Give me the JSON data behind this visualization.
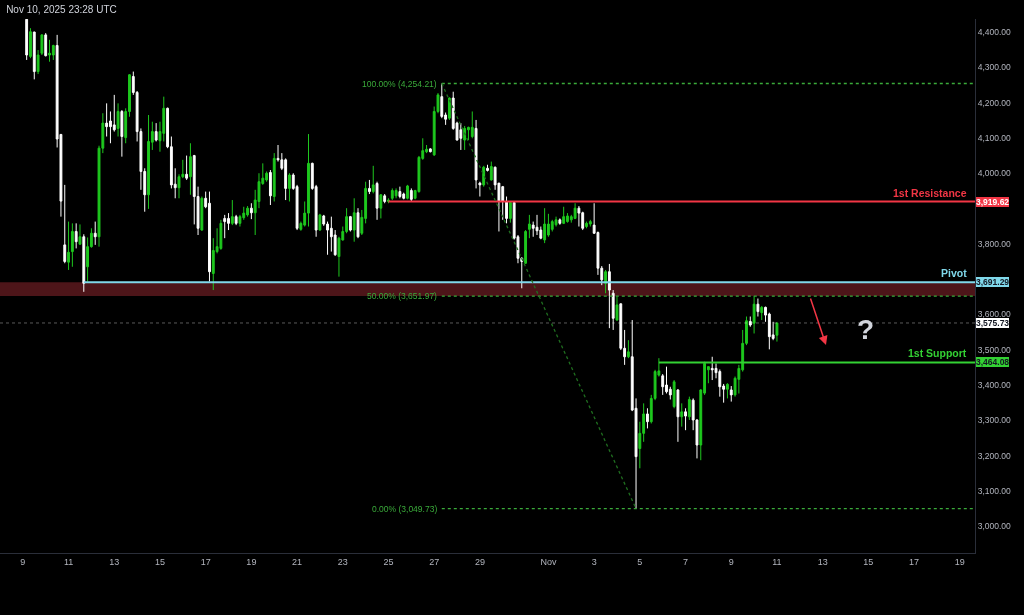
{
  "chart_data": {
    "type": "candlestick",
    "title": "Nov 10, 2025 23:28 UTC",
    "x": [
      "2025-10-09T04:00",
      "2025-10-09T08:00",
      "2025-10-09T12:00",
      "2025-10-09T16:00",
      "2025-10-09T20:00",
      "2025-10-10T00:00",
      "2025-10-10T04:00",
      "2025-10-10T08:00",
      "2025-10-10T12:00",
      "2025-10-10T16:00",
      "2025-10-10T20:00",
      "2025-10-11T00:00",
      "2025-10-11T04:00",
      "2025-10-11T08:00",
      "2025-10-11T12:00",
      "2025-10-11T16:00",
      "2025-10-11T20:00",
      "2025-10-12T00:00",
      "2025-10-12T04:00",
      "2025-10-12T08:00",
      "2025-10-12T12:00",
      "2025-10-12T16:00",
      "2025-10-12T20:00",
      "2025-10-13T00:00",
      "2025-10-13T04:00",
      "2025-10-13T08:00",
      "2025-10-13T12:00",
      "2025-10-13T16:00",
      "2025-10-13T20:00",
      "2025-10-14T00:00",
      "2025-10-14T04:00",
      "2025-10-14T08:00",
      "2025-10-14T12:00",
      "2025-10-14T16:00",
      "2025-10-14T20:00",
      "2025-10-15T00:00",
      "2025-10-15T04:00",
      "2025-10-15T08:00",
      "2025-10-15T12:00",
      "2025-10-15T16:00",
      "2025-10-15T20:00",
      "2025-10-16T00:00",
      "2025-10-16T04:00",
      "2025-10-16T08:00",
      "2025-10-16T12:00",
      "2025-10-16T16:00",
      "2025-10-16T20:00",
      "2025-10-17T00:00",
      "2025-10-17T04:00",
      "2025-10-17T08:00",
      "2025-10-17T12:00",
      "2025-10-17T16:00",
      "2025-10-17T20:00",
      "2025-10-18T00:00",
      "2025-10-18T04:00",
      "2025-10-18T08:00",
      "2025-10-18T12:00",
      "2025-10-18T16:00",
      "2025-10-18T20:00",
      "2025-10-19T00:00",
      "2025-10-19T04:00",
      "2025-10-19T08:00",
      "2025-10-19T12:00",
      "2025-10-19T16:00",
      "2025-10-19T20:00",
      "2025-10-20T00:00",
      "2025-10-20T04:00",
      "2025-10-20T08:00",
      "2025-10-20T12:00",
      "2025-10-20T16:00",
      "2025-10-20T20:00",
      "2025-10-21T00:00",
      "2025-10-21T04:00",
      "2025-10-21T08:00",
      "2025-10-21T12:00",
      "2025-10-21T16:00",
      "2025-10-21T20:00",
      "2025-10-22T00:00",
      "2025-10-22T04:00",
      "2025-10-22T08:00",
      "2025-10-22T12:00",
      "2025-10-22T16:00",
      "2025-10-22T20:00",
      "2025-10-23T00:00",
      "2025-10-23T04:00",
      "2025-10-23T08:00",
      "2025-10-23T12:00",
      "2025-10-23T16:00",
      "2025-10-23T20:00",
      "2025-10-24T00:00",
      "2025-10-24T04:00",
      "2025-10-24T08:00",
      "2025-10-24T12:00",
      "2025-10-24T16:00",
      "2025-10-24T20:00",
      "2025-10-25T00:00",
      "2025-10-25T04:00",
      "2025-10-25T08:00",
      "2025-10-25T12:00",
      "2025-10-25T16:00",
      "2025-10-25T20:00",
      "2025-10-26T00:00",
      "2025-10-26T04:00",
      "2025-10-26T08:00",
      "2025-10-26T12:00",
      "2025-10-26T16:00",
      "2025-10-26T20:00",
      "2025-10-27T00:00",
      "2025-10-27T04:00",
      "2025-10-27T08:00",
      "2025-10-27T12:00",
      "2025-10-27T16:00",
      "2025-10-27T20:00",
      "2025-10-28T00:00",
      "2025-10-28T04:00",
      "2025-10-28T08:00",
      "2025-10-28T12:00",
      "2025-10-28T16:00",
      "2025-10-28T20:00",
      "2025-10-29T00:00",
      "2025-10-29T04:00",
      "2025-10-29T08:00",
      "2025-10-29T12:00",
      "2025-10-29T16:00",
      "2025-10-29T20:00",
      "2025-10-30T00:00",
      "2025-10-30T04:00",
      "2025-10-30T08:00",
      "2025-10-30T12:00",
      "2025-10-30T16:00",
      "2025-10-30T20:00",
      "2025-10-31T00:00",
      "2025-10-31T04:00",
      "2025-10-31T08:00",
      "2025-10-31T12:00",
      "2025-10-31T16:00",
      "2025-10-31T20:00",
      "2025-11-01T00:00",
      "2025-11-01T04:00",
      "2025-11-01T08:00",
      "2025-11-01T12:00",
      "2025-11-01T16:00",
      "2025-11-01T20:00",
      "2025-11-02T00:00",
      "2025-11-02T04:00",
      "2025-11-02T08:00",
      "2025-11-02T12:00",
      "2025-11-02T16:00",
      "2025-11-02T20:00",
      "2025-11-03T00:00",
      "2025-11-03T04:00",
      "2025-11-03T08:00",
      "2025-11-03T12:00",
      "2025-11-03T16:00",
      "2025-11-03T20:00",
      "2025-11-04T00:00",
      "2025-11-04T04:00",
      "2025-11-04T08:00",
      "2025-11-04T12:00",
      "2025-11-04T16:00",
      "2025-11-04T20:00",
      "2025-11-05T00:00",
      "2025-11-05T04:00",
      "2025-11-05T08:00",
      "2025-11-05T12:00",
      "2025-11-05T16:00",
      "2025-11-05T20:00",
      "2025-11-06T00:00",
      "2025-11-06T04:00",
      "2025-11-06T08:00",
      "2025-11-06T12:00",
      "2025-11-06T16:00",
      "2025-11-06T20:00",
      "2025-11-07T00:00",
      "2025-11-07T04:00",
      "2025-11-07T08:00",
      "2025-11-07T12:00",
      "2025-11-07T16:00",
      "2025-11-07T20:00",
      "2025-11-08T00:00",
      "2025-11-08T04:00",
      "2025-11-08T08:00",
      "2025-11-08T12:00",
      "2025-11-08T16:00",
      "2025-11-08T20:00",
      "2025-11-09T00:00",
      "2025-11-09T04:00",
      "2025-11-09T08:00",
      "2025-11-09T12:00",
      "2025-11-09T16:00",
      "2025-11-09T20:00",
      "2025-11-10T00:00",
      "2025-11-10T04:00",
      "2025-11-10T08:00",
      "2025-11-10T12:00",
      "2025-11-10T16:00",
      "2025-11-10T20:00",
      "2025-11-11T00:00"
    ],
    "ohlc": [
      [
        4436,
        4436,
        4321,
        4335
      ],
      [
        4331,
        4411,
        4326,
        4401
      ],
      [
        4400,
        4401,
        4266,
        4288
      ],
      [
        4288,
        4349,
        4281,
        4335
      ],
      [
        4340,
        4394,
        4335,
        4392
      ],
      [
        4392,
        4397,
        4331,
        4333
      ],
      [
        4335,
        4378,
        4316,
        4340
      ],
      [
        4335,
        4364,
        4321,
        4362
      ],
      [
        4362,
        4392,
        4073,
        4097
      ],
      [
        4110,
        4111,
        3877,
        3921
      ],
      [
        3797,
        3967,
        3745,
        3750
      ],
      [
        3748,
        3863,
        3726,
        3776
      ],
      [
        3778,
        3858,
        3735,
        3835
      ],
      [
        3835,
        3858,
        3787,
        3806
      ],
      [
        3799,
        3855,
        3797,
        3820
      ],
      [
        3820,
        3827,
        3664,
        3688
      ],
      [
        3735,
        3818,
        3693,
        3792
      ],
      [
        3792,
        3844,
        3789,
        3830
      ],
      [
        3830,
        3863,
        3797,
        3820
      ],
      [
        3820,
        4078,
        3792,
        4071
      ],
      [
        4071,
        4170,
        4057,
        4142
      ],
      [
        4142,
        4198,
        4104,
        4132
      ],
      [
        4148,
        4175,
        4085,
        4132
      ],
      [
        4137,
        4222,
        4118,
        4123
      ],
      [
        4127,
        4198,
        4104,
        4175
      ],
      [
        4175,
        4179,
        4047,
        4104
      ],
      [
        4101,
        4184,
        4085,
        4175
      ],
      [
        4175,
        4281,
        4160,
        4279
      ],
      [
        4274,
        4288,
        4222,
        4229
      ],
      [
        4229,
        4233,
        4090,
        4118
      ],
      [
        4118,
        4127,
        3953,
        4005
      ],
      [
        4005,
        4014,
        3891,
        3939
      ],
      [
        3939,
        4165,
        3899,
        4090
      ],
      [
        4088,
        4146,
        4066,
        4118
      ],
      [
        4118,
        4142,
        4090,
        4094
      ],
      [
        4092,
        4146,
        4061,
        4118
      ],
      [
        4113,
        4217,
        4090,
        4184
      ],
      [
        4184,
        4186,
        4071,
        4075
      ],
      [
        4075,
        4104,
        3957,
        3967
      ],
      [
        3969,
        4014,
        3929,
        3959
      ],
      [
        3959,
        3997,
        3929,
        3990
      ],
      [
        3990,
        4038,
        3986,
        3997
      ],
      [
        3997,
        4050,
        3981,
        3986
      ],
      [
        3990,
        4085,
        3939,
        4047
      ],
      [
        4050,
        4052,
        3855,
        3934
      ],
      [
        3934,
        3962,
        3825,
        3844
      ],
      [
        3839,
        3934,
        3837,
        3929
      ],
      [
        3929,
        3948,
        3901,
        3905
      ],
      [
        3915,
        3948,
        3693,
        3721
      ],
      [
        3716,
        3816,
        3669,
        3781
      ],
      [
        3778,
        3844,
        3773,
        3792
      ],
      [
        3787,
        3868,
        3783,
        3858
      ],
      [
        3872,
        3882,
        3816,
        3863
      ],
      [
        3872,
        3887,
        3839,
        3858
      ],
      [
        3858,
        3924,
        3853,
        3877
      ],
      [
        3877,
        3882,
        3853,
        3858
      ],
      [
        3858,
        3882,
        3849,
        3877
      ],
      [
        3874,
        3905,
        3868,
        3887
      ],
      [
        3882,
        3907,
        3877,
        3901
      ],
      [
        3901,
        3915,
        3870,
        3888
      ],
      [
        3888,
        3953,
        3825,
        3924
      ],
      [
        3920,
        4000,
        3901,
        3976
      ],
      [
        3971,
        4028,
        3967,
        3986
      ],
      [
        3981,
        4005,
        3976,
        4000
      ],
      [
        4002,
        4009,
        3910,
        3936
      ],
      [
        3934,
        4057,
        3920,
        4042
      ],
      [
        4042,
        4080,
        4033,
        4038
      ],
      [
        4038,
        4057,
        4009,
        4014
      ],
      [
        4038,
        4042,
        3924,
        3957
      ],
      [
        3957,
        4000,
        3920,
        3995
      ],
      [
        3995,
        4000,
        3953,
        3957
      ],
      [
        3962,
        3967,
        3839,
        3844
      ],
      [
        3841,
        3863,
        3837,
        3858
      ],
      [
        3853,
        3920,
        3849,
        3887
      ],
      [
        3887,
        4111,
        3849,
        4028
      ],
      [
        4028,
        4030,
        3953,
        3957
      ],
      [
        3962,
        3967,
        3820,
        3839
      ],
      [
        3839,
        3885,
        3837,
        3882
      ],
      [
        3879,
        3882,
        3851,
        3856
      ],
      [
        3856,
        3863,
        3769,
        3839
      ],
      [
        3844,
        3877,
        3778,
        3820
      ],
      [
        3825,
        3839,
        3766,
        3769
      ],
      [
        3764,
        3820,
        3707,
        3816
      ],
      [
        3811,
        3849,
        3809,
        3835
      ],
      [
        3835,
        3901,
        3830,
        3877
      ],
      [
        3877,
        3879,
        3835,
        3839
      ],
      [
        3839,
        3929,
        3806,
        3888
      ],
      [
        3888,
        3901,
        3816,
        3820
      ],
      [
        3830,
        3896,
        3825,
        3875
      ],
      [
        3872,
        3976,
        3858,
        3957
      ],
      [
        3957,
        3981,
        3941,
        3948
      ],
      [
        3948,
        4021,
        3943,
        3967
      ],
      [
        3971,
        3976,
        3868,
        3901
      ],
      [
        3901,
        3941,
        3872,
        3939
      ],
      [
        3936,
        3941,
        3915,
        3920
      ],
      [
        3920,
        3929,
        3915,
        3924
      ],
      [
        3929,
        3957,
        3924,
        3951
      ],
      [
        3936,
        3957,
        3929,
        3951
      ],
      [
        3948,
        3962,
        3929,
        3934
      ],
      [
        3941,
        3945,
        3926,
        3929
      ],
      [
        3929,
        3967,
        3926,
        3964
      ],
      [
        3951,
        3957,
        3920,
        3926
      ],
      [
        3929,
        3953,
        3926,
        3951
      ],
      [
        3948,
        4049,
        3945,
        4045
      ],
      [
        4042,
        4099,
        4038,
        4064
      ],
      [
        4061,
        4080,
        4057,
        4068
      ],
      [
        4069,
        4071,
        4059,
        4061
      ],
      [
        4052,
        4189,
        4049,
        4175
      ],
      [
        4175,
        4227,
        4170,
        4222
      ],
      [
        4217,
        4254.21,
        4156,
        4161
      ],
      [
        4165,
        4172,
        4137,
        4153
      ],
      [
        4156,
        4215,
        4151,
        4213
      ],
      [
        4213,
        4231,
        4123,
        4127
      ],
      [
        4142,
        4146,
        4093,
        4094
      ],
      [
        4123,
        4142,
        4066,
        4099
      ],
      [
        4094,
        4134,
        4066,
        4127
      ],
      [
        4123,
        4132,
        4094,
        4130
      ],
      [
        4104,
        4175,
        4099,
        4130
      ],
      [
        4127,
        4151,
        3957,
        3981
      ],
      [
        3972,
        3976,
        3934,
        3967
      ],
      [
        3967,
        4021,
        3962,
        4017
      ],
      [
        4014,
        4024,
        4005,
        4008
      ],
      [
        3981,
        4033,
        3979,
        4019
      ],
      [
        4017,
        4019,
        3953,
        3967
      ],
      [
        3972,
        3972,
        3835,
        3920
      ],
      [
        3962,
        3964,
        3868,
        3920
      ],
      [
        3920,
        3934,
        3858,
        3872
      ],
      [
        3872,
        3920,
        3860,
        3917
      ],
      [
        3917,
        3920,
        3812,
        3816
      ],
      [
        3820,
        3825,
        3745,
        3759
      ],
      [
        3759,
        3762,
        3674,
        3750
      ],
      [
        3745,
        3839,
        3743,
        3835
      ],
      [
        3841,
        3882,
        3816,
        3856
      ],
      [
        3853,
        3863,
        3820,
        3844
      ],
      [
        3847,
        3882,
        3825,
        3837
      ],
      [
        3839,
        3849,
        3813,
        3816
      ],
      [
        3811,
        3901,
        3802,
        3856
      ],
      [
        3825,
        3885,
        3820,
        3856
      ],
      [
        3841,
        3868,
        3835,
        3863
      ],
      [
        3854,
        3877,
        3849,
        3868
      ],
      [
        3868,
        3872,
        3854,
        3858
      ],
      [
        3858,
        3905,
        3856,
        3877
      ],
      [
        3863,
        3887,
        3860,
        3879
      ],
      [
        3868,
        3882,
        3860,
        3877
      ],
      [
        3872,
        3915,
        3870,
        3901
      ],
      [
        3901,
        3907,
        3849,
        3887
      ],
      [
        3888,
        3891,
        3839,
        3844
      ],
      [
        3849,
        3863,
        3844,
        3858
      ],
      [
        3856,
        3868,
        3849,
        3863
      ],
      [
        3853,
        3915,
        3828,
        3830
      ],
      [
        3832,
        3835,
        3712,
        3731
      ],
      [
        3731,
        3737,
        3683,
        3698
      ],
      [
        3688,
        3726,
        3660,
        3721
      ],
      [
        3721,
        3743,
        3561,
        3669
      ],
      [
        3660,
        3669,
        3556,
        3589
      ],
      [
        3584,
        3650,
        3582,
        3627
      ],
      [
        3630,
        3631,
        3499,
        3504
      ],
      [
        3504,
        3556,
        3457,
        3480
      ],
      [
        3480,
        3527,
        3476,
        3494
      ],
      [
        3480,
        3584,
        3326,
        3329
      ],
      [
        3334,
        3362,
        3049.73,
        3197
      ],
      [
        3220,
        3296,
        3164,
        3263
      ],
      [
        3263,
        3348,
        3239,
        3318
      ],
      [
        3318,
        3334,
        3277,
        3296
      ],
      [
        3296,
        3372,
        3291,
        3362
      ],
      [
        3362,
        3443,
        3357,
        3438
      ],
      [
        3428,
        3476,
        3424,
        3440
      ],
      [
        3426,
        3431,
        3372,
        3395
      ],
      [
        3400,
        3452,
        3376,
        3381
      ],
      [
        3388,
        3395,
        3359,
        3372
      ],
      [
        3339,
        3414,
        3334,
        3409
      ],
      [
        3386,
        3388,
        3239,
        3310
      ],
      [
        3310,
        3348,
        3282,
        3324
      ],
      [
        3324,
        3334,
        3272,
        3312
      ],
      [
        3310,
        3367,
        3301,
        3359
      ],
      [
        3357,
        3362,
        3272,
        3301
      ],
      [
        3301,
        3303,
        3192,
        3230
      ],
      [
        3230,
        3388,
        3187,
        3386
      ],
      [
        3377,
        3466,
        3372,
        3461
      ],
      [
        3443,
        3452,
        3405,
        3452
      ],
      [
        3447,
        3480,
        3414,
        3443
      ],
      [
        3447,
        3461,
        3419,
        3435
      ],
      [
        3438,
        3444,
        3367,
        3395
      ],
      [
        3397,
        3403,
        3350,
        3388
      ],
      [
        3388,
        3405,
        3362,
        3402
      ],
      [
        3386,
        3397,
        3353,
        3372
      ],
      [
        3372,
        3424,
        3367,
        3419
      ],
      [
        3416,
        3457,
        3376,
        3447
      ],
      [
        3443,
        3556,
        3438,
        3518
      ],
      [
        3518,
        3594,
        3513,
        3582
      ],
      [
        3580,
        3594,
        3565,
        3570
      ],
      [
        3575,
        3652,
        3546,
        3629
      ],
      [
        3629,
        3645,
        3594,
        3608
      ],
      [
        3605,
        3624,
        3584,
        3620
      ],
      [
        3620,
        3622,
        3579,
        3598
      ],
      [
        3601,
        3605,
        3501,
        3537
      ],
      [
        3542,
        3579,
        3527,
        3532
      ],
      [
        3541,
        3577,
        3523,
        3575.73
      ]
    ],
    "colors": [
      "#ffffff",
      "#1ec81e",
      "#ffffff",
      "#1ec81e",
      "#1ec81e",
      "#ffffff",
      "#1ec81e",
      "#1ec81e",
      "#ffffff",
      "#ffffff",
      "#ffffff",
      "#1ec81e",
      "#1ec81e",
      "#ffffff",
      "#1ec81e",
      "#ffffff",
      "#1ec81e",
      "#1ec81e",
      "#ffffff",
      "#1ec81e",
      "#1ec81e",
      "#ffffff",
      "#ffffff",
      "#ffffff",
      "#1ec81e",
      "#ffffff",
      "#1ec81e",
      "#1ec81e",
      "#ffffff",
      "#ffffff",
      "#ffffff",
      "#ffffff",
      "#1ec81e",
      "#1ec81e",
      "#ffffff",
      "#1ec81e",
      "#1ec81e",
      "#ffffff",
      "#ffffff",
      "#ffffff",
      "#1ec81e",
      "#1ec81e",
      "#ffffff",
      "#1ec81e",
      "#ffffff",
      "#ffffff",
      "#1ec81e",
      "#ffffff",
      "#ffffff",
      "#1ec81e",
      "#1ec81e",
      "#1ec81e",
      "#ffffff",
      "#ffffff",
      "#1ec81e",
      "#ffffff",
      "#1ec81e",
      "#1ec81e",
      "#1ec81e",
      "#ffffff",
      "#1ec81e",
      "#1ec81e",
      "#1ec81e",
      "#1ec81e",
      "#ffffff",
      "#1ec81e",
      "#ffffff",
      "#ffffff",
      "#ffffff",
      "#1ec81e",
      "#ffffff",
      "#ffffff",
      "#1ec81e",
      "#1ec81e",
      "#1ec81e",
      "#ffffff",
      "#ffffff",
      "#1ec81e",
      "#ffffff",
      "#ffffff",
      "#ffffff",
      "#ffffff",
      "#1ec81e",
      "#1ec81e",
      "#1ec81e",
      "#ffffff",
      "#1ec81e",
      "#ffffff",
      "#1ec81e",
      "#1ec81e",
      "#ffffff",
      "#1ec81e",
      "#ffffff",
      "#1ec81e",
      "#ffffff",
      "#1ec81e",
      "#1ec81e",
      "#1ec81e",
      "#ffffff",
      "#ffffff",
      "#1ec81e",
      "#ffffff",
      "#1ec81e",
      "#1ec81e",
      "#1ec81e",
      "#1ec81e",
      "#ffffff",
      "#1ec81e",
      "#1ec81e",
      "#ffffff",
      "#ffffff",
      "#1ec81e",
      "#ffffff",
      "#ffffff",
      "#ffffff",
      "#1ec81e",
      "#1ec81e",
      "#1ec81e",
      "#ffffff",
      "#ffffff",
      "#1ec81e",
      "#ffffff",
      "#1ec81e",
      "#ffffff",
      "#ffffff",
      "#ffffff",
      "#ffffff",
      "#1ec81e",
      "#ffffff",
      "#ffffff",
      "#ffffff",
      "#1ec81e",
      "#1ec81e",
      "#ffffff",
      "#ffffff",
      "#ffffff",
      "#1ec81e",
      "#1ec81e",
      "#1ec81e",
      "#1ec81e",
      "#ffffff",
      "#1ec81e",
      "#1ec81e",
      "#1ec81e",
      "#1ec81e",
      "#ffffff",
      "#ffffff",
      "#1ec81e",
      "#1ec81e",
      "#ffffff",
      "#ffffff",
      "#ffffff",
      "#1ec81e",
      "#ffffff",
      "#ffffff",
      "#1ec81e",
      "#ffffff",
      "#ffffff",
      "#1ec81e",
      "#ffffff",
      "#ffffff",
      "#1ec81e",
      "#1ec81e",
      "#ffffff",
      "#1ec81e",
      "#1ec81e",
      "#1ec81e",
      "#ffffff",
      "#ffffff",
      "#ffffff",
      "#1ec81e",
      "#ffffff",
      "#1ec81e",
      "#ffffff",
      "#1ec81e",
      "#ffffff",
      "#ffffff",
      "#1ec81e",
      "#1ec81e",
      "#1ec81e",
      "#ffffff",
      "#ffffff",
      "#ffffff",
      "#ffffff",
      "#1ec81e",
      "#ffffff",
      "#1ec81e",
      "#1ec81e",
      "#1ec81e",
      "#1ec81e",
      "#ffffff",
      "#1ec81e",
      "#ffffff",
      "#1ec81e",
      "#ffffff",
      "#ffffff",
      "#ffffff",
      "#1ec81e"
    ],
    "series": [
      {
        "type": "line",
        "name": "1st Resistance",
        "color": "#f23645",
        "line_style": "solid",
        "x": [
          "2025-10-25T00:00",
          "2025-11-19T16:00"
        ],
        "values": [
          3919.62,
          3919.62
        ],
        "value_labels": [
          null,
          "3,919.62"
        ]
      },
      {
        "type": "line",
        "name": "Pivot",
        "color": "#80d8ea",
        "line_style": "solid",
        "x": [
          "2025-10-11T16:00",
          "2025-11-19T16:00"
        ],
        "values": [
          3691.29,
          3691.29
        ],
        "value_labels": [
          null,
          "3,691.29"
        ]
      },
      {
        "type": "line",
        "name": "1st Support",
        "color": "#33d133",
        "line_style": "solid",
        "x": [
          "2025-11-05T20:00",
          "2025-11-19T16:00"
        ],
        "values": [
          3464.08,
          3464.08
        ],
        "value_labels": [
          null,
          "3,464.08"
        ]
      },
      {
        "type": "line",
        "name": "100.00% (4,254.21)",
        "color": "#3aaa3a",
        "line_style": "dotted",
        "x": [
          "2025-10-27T08:00",
          "2025-11-19T16:00"
        ],
        "values": [
          4254.21,
          4254.21
        ]
      },
      {
        "type": "line",
        "name": "50.00% (3,651.97)",
        "color": "#3aaa3a",
        "line_style": "dotted",
        "x": [
          "2025-10-27T08:00",
          "2025-11-19T16:00"
        ],
        "values": [
          3651.97,
          3651.97
        ]
      },
      {
        "type": "line",
        "name": "0.00% (3,049.73)",
        "color": "#3aaa3a",
        "line_style": "dotted",
        "x": [
          "2025-10-27T08:00",
          "2025-11-19T16:00"
        ],
        "values": [
          3049.73,
          3049.73
        ]
      },
      {
        "type": "line",
        "color": "#1f6e1f",
        "line_style": "dotted",
        "x": [
          "2025-10-27T08:00",
          "2025-11-04T20:00"
        ],
        "values": [
          4254.21,
          3049.73
        ]
      }
    ],
    "bands": [
      {
        "axis": "y",
        "from": 3651.97,
        "to": 3691.29,
        "color": "#4d1519"
      }
    ],
    "ref_lines": [
      {
        "axis": "y",
        "value": 3575.73,
        "label": "3,575.73",
        "color": "#ffffff",
        "line_style": "dotted"
      }
    ],
    "annotations": [
      "?"
    ],
    "xlim": [
      "2025-10-08T00:00",
      "2025-11-19T16:00"
    ],
    "xticks": [
      {
        "value": "2025-10-09",
        "label": "9"
      },
      {
        "value": "2025-10-11",
        "label": "11"
      },
      {
        "value": "2025-10-13",
        "label": "13"
      },
      {
        "value": "2025-10-15",
        "label": "15"
      },
      {
        "value": "2025-10-17",
        "label": "17"
      },
      {
        "value": "2025-10-19",
        "label": "19"
      },
      {
        "value": "2025-10-21",
        "label": "21"
      },
      {
        "value": "2025-10-23",
        "label": "23"
      },
      {
        "value": "2025-10-25",
        "label": "25"
      },
      {
        "value": "2025-10-27",
        "label": "27"
      },
      {
        "value": "2025-10-29",
        "label": "29"
      },
      {
        "value": "2025-11-01",
        "label": "Nov"
      },
      {
        "value": "2025-11-03",
        "label": "3"
      },
      {
        "value": "2025-11-05",
        "label": "5"
      },
      {
        "value": "2025-11-07",
        "label": "7"
      },
      {
        "value": "2025-11-09",
        "label": "9"
      },
      {
        "value": "2025-11-11",
        "label": "11"
      },
      {
        "value": "2025-11-13",
        "label": "13"
      },
      {
        "value": "2025-11-15",
        "label": "15"
      },
      {
        "value": "2025-11-17",
        "label": "17"
      },
      {
        "value": "2025-11-19",
        "label": "19"
      }
    ],
    "ylim": [
      2924,
      4437
    ],
    "yticks": [
      {
        "value": 3000,
        "label": "3,000.00"
      },
      {
        "value": 3100,
        "label": "3,100.00"
      },
      {
        "value": 3200,
        "label": "3,200.00"
      },
      {
        "value": 3300,
        "label": "3,300.00"
      },
      {
        "value": 3400,
        "label": "3,400.00"
      },
      {
        "value": 3500,
        "label": "3,500.00"
      },
      {
        "value": 3600,
        "label": "3,600.00"
      },
      {
        "value": 3800,
        "label": "3,800.00"
      },
      {
        "value": 4000,
        "label": "4,000.00"
      },
      {
        "value": 4100,
        "label": "4,100.00"
      },
      {
        "value": 4200,
        "label": "4,200.00"
      },
      {
        "value": 4300,
        "label": "4,300.00"
      },
      {
        "value": 4400,
        "label": "4,400.00"
      }
    ]
  }
}
